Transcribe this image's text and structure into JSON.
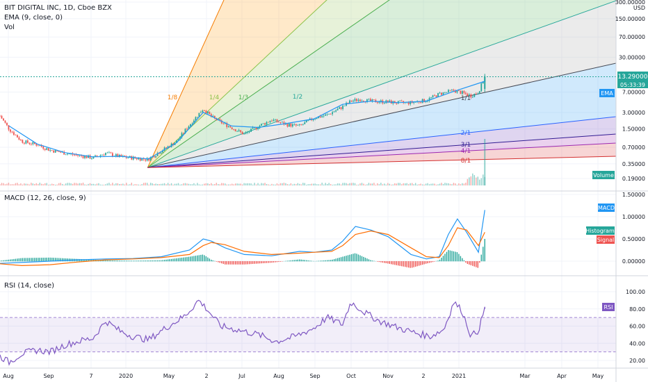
{
  "header": {
    "symbol_line": "BIT DIGITAL INC, 1D, Cboe BZX",
    "ema_line": "EMA (9, close, 0)",
    "vol_line": "Vol"
  },
  "price_axis": {
    "currency": "USD",
    "scale": "log",
    "ticks": [
      "300.00000",
      "150.00000",
      "70.00000",
      "30.00000",
      "13.29000",
      "7.00000",
      "3.00000",
      "1.50000",
      "0.70000",
      "0.35000",
      "0.19000"
    ],
    "last_price": "13.29000",
    "countdown": "05:33:39",
    "ema_tag": "EMA",
    "volume_tag": "Volume"
  },
  "fan_labels": [
    "1/8",
    "1/4",
    "1/3",
    "1/2",
    "1/1",
    "2/1",
    "3/1",
    "4/1",
    "8/1"
  ],
  "macd": {
    "title": "MACD (12, 26, close, 9)",
    "ticks": [
      "1.50000",
      "1.00000",
      "0.50000",
      "0.00000"
    ],
    "tags": {
      "macd": "MACD",
      "histogram": "Histogram",
      "signal": "Signal"
    }
  },
  "rsi": {
    "title": "RSI (14, close)",
    "ticks": [
      "100.00",
      "80.00",
      "60.00",
      "40.00",
      "20.00"
    ],
    "tag": "RSI"
  },
  "time_axis": [
    "Aug",
    "Sep",
    "7",
    "2020",
    "May",
    "2",
    "Jul",
    "Aug",
    "Sep",
    "Oct",
    "Nov",
    "2",
    "2021",
    "Mar",
    "Apr",
    "May"
  ],
  "colors": {
    "up": "#26a69a",
    "down": "#ef5350",
    "ema": "#2196f3",
    "macd": "#2196f3",
    "signal": "#ff6d00",
    "rsi": "#7e57c2",
    "fan_1_8": "#f57c00",
    "fan_1_4": "#8bc34a",
    "fan_1_3": "#4caf50",
    "fan_1_2": "#26a69a",
    "fan_1_1": "#434651",
    "fan_2_1": "#2962ff",
    "fan_3_1": "#311b92",
    "fan_4_1": "#9c27b0",
    "fan_8_1": "#d32f2f"
  },
  "chart_data": [
    {
      "type": "candlestick",
      "title": "BIT DIGITAL INC, 1D, Cboe BZX",
      "yscale": "log",
      "ylim": [
        0.15,
        400
      ],
      "x_start": "2019-07-22",
      "x_end": "2021-05-28",
      "overlay": "Gann fan",
      "series": [
        {
          "name": "price",
          "x": [
            "2019-07-22",
            "2019-08-01",
            "2019-08-15",
            "2019-09-01",
            "2019-09-15",
            "2019-10-01",
            "2019-10-15",
            "2019-11-01",
            "2019-11-15",
            "2019-12-01",
            "2019-12-15",
            "2019-12-31",
            "2020-01-15",
            "2020-02-01",
            "2020-02-15",
            "2020-03-01",
            "2020-03-10",
            "2020-03-20",
            "2020-04-01",
            "2020-04-15",
            "2020-05-01",
            "2020-05-15",
            "2020-06-01",
            "2020-06-15",
            "2020-07-01",
            "2020-07-15",
            "2020-08-01",
            "2020-08-10",
            "2020-08-20",
            "2020-09-01",
            "2020-09-15",
            "2020-10-01",
            "2020-10-15",
            "2020-11-01",
            "2020-11-15",
            "2020-12-01",
            "2020-12-10",
            "2020-12-20",
            "2020-12-28",
            "2021-01-04"
          ],
          "values": [
            2.6,
            1.5,
            0.9,
            0.78,
            0.62,
            0.55,
            0.5,
            0.45,
            0.55,
            0.47,
            0.45,
            0.42,
            0.6,
            0.9,
            1.8,
            3.5,
            2.5,
            2.0,
            1.6,
            1.2,
            1.7,
            2.2,
            1.8,
            1.7,
            2.4,
            2.7,
            3.8,
            4.8,
            5.2,
            4.8,
            4.7,
            4.5,
            4.5,
            5.0,
            6.5,
            7.5,
            6.8,
            6.0,
            7.0,
            13.29
          ]
        },
        {
          "name": "EMA (9, close, 0)",
          "x": [
            "2019-08-01",
            "2019-09-01",
            "2019-10-01",
            "2019-11-01",
            "2019-12-01",
            "2020-01-01",
            "2020-02-01",
            "2020-03-01",
            "2020-04-01",
            "2020-05-01",
            "2020-06-01",
            "2020-07-01",
            "2020-08-01",
            "2020-09-01",
            "2020-10-01",
            "2020-11-01",
            "2020-12-01",
            "2021-01-04"
          ],
          "values": [
            1.7,
            0.8,
            0.56,
            0.47,
            0.48,
            0.43,
            0.85,
            3.0,
            1.7,
            1.6,
            1.9,
            2.3,
            4.2,
            4.8,
            4.5,
            4.8,
            7.2,
            11.0
          ]
        }
      ]
    },
    {
      "type": "bar",
      "title": "Vol",
      "note": "volume histogram at bottom of price pane, spikes near 2021"
    },
    {
      "type": "line",
      "title": "MACD (12, 26, close, 9)",
      "ylim": [
        -0.4,
        1.6
      ],
      "x": [
        "2019-07-22",
        "2019-08-15",
        "2019-09-15",
        "2019-10-15",
        "2019-11-15",
        "2019-12-15",
        "2020-01-15",
        "2020-02-15",
        "2020-03-01",
        "2020-03-10",
        "2020-03-25",
        "2020-04-15",
        "2020-05-15",
        "2020-06-15",
        "2020-07-01",
        "2020-07-20",
        "2020-08-01",
        "2020-08-15",
        "2020-09-01",
        "2020-09-20",
        "2020-10-15",
        "2020-11-01",
        "2020-11-15",
        "2020-11-25",
        "2020-12-05",
        "2020-12-15",
        "2020-12-28",
        "2021-01-04"
      ],
      "series": [
        {
          "name": "MACD",
          "values": [
            -0.05,
            -0.03,
            0.0,
            0.03,
            0.05,
            0.06,
            0.1,
            0.25,
            0.5,
            0.45,
            0.3,
            0.15,
            0.12,
            0.22,
            0.2,
            0.25,
            0.45,
            0.78,
            0.7,
            0.55,
            0.15,
            0.05,
            0.1,
            0.6,
            0.95,
            0.65,
            0.2,
            1.15
          ]
        },
        {
          "name": "Signal",
          "values": [
            -0.06,
            -0.1,
            -0.08,
            -0.02,
            0.03,
            0.05,
            0.08,
            0.15,
            0.35,
            0.42,
            0.37,
            0.22,
            0.15,
            0.18,
            0.2,
            0.22,
            0.35,
            0.6,
            0.68,
            0.6,
            0.3,
            0.1,
            0.08,
            0.35,
            0.75,
            0.7,
            0.35,
            0.65
          ]
        }
      ]
    },
    {
      "type": "line",
      "title": "RSI (14, close)",
      "ylim": [
        10,
        110
      ],
      "bands": [
        30,
        70
      ],
      "series": [
        {
          "name": "RSI",
          "x": [
            "2019-07-22",
            "2019-08-01",
            "2019-08-15",
            "2019-09-01",
            "2019-09-15",
            "2019-10-01",
            "2019-10-15",
            "2019-11-01",
            "2019-11-15",
            "2019-12-01",
            "2019-12-15",
            "2020-01-01",
            "2020-01-20",
            "2020-02-10",
            "2020-02-25",
            "2020-03-05",
            "2020-03-20",
            "2020-04-10",
            "2020-05-01",
            "2020-05-20",
            "2020-06-10",
            "2020-07-01",
            "2020-07-15",
            "2020-08-01",
            "2020-08-10",
            "2020-08-25",
            "2020-09-10",
            "2020-10-01",
            "2020-10-20",
            "2020-11-05",
            "2020-11-20",
            "2020-12-01",
            "2020-12-10",
            "2020-12-20",
            "2020-12-28",
            "2021-01-04"
          ],
          "values": [
            25,
            18,
            28,
            32,
            30,
            38,
            42,
            46,
            66,
            54,
            48,
            44,
            58,
            72,
            90,
            80,
            60,
            55,
            50,
            42,
            48,
            58,
            70,
            62,
            88,
            76,
            66,
            58,
            52,
            48,
            56,
            88,
            78,
            48,
            55,
            80
          ]
        }
      ]
    }
  ]
}
